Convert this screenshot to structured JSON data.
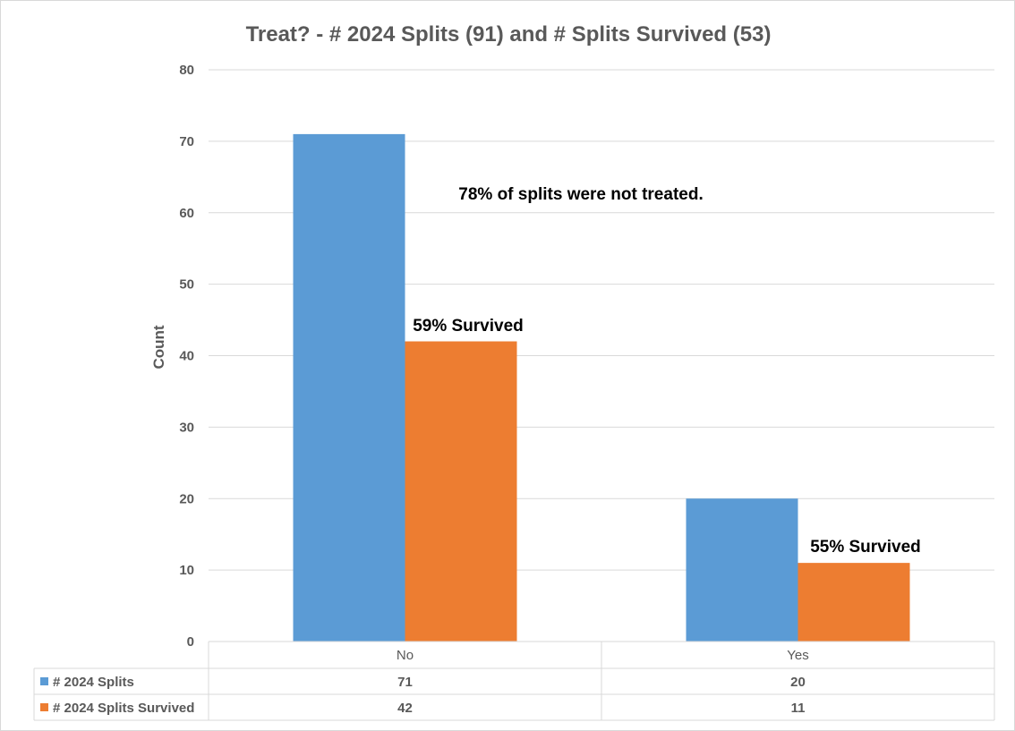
{
  "chart_data": {
    "type": "bar",
    "title": "Treat? - # 2024 Splits (91) and # Splits Survived (53)",
    "ylabel": "Count",
    "xlabel": "",
    "categories": [
      "No",
      "Yes"
    ],
    "ylim": [
      0,
      80
    ],
    "yticks": [
      0,
      10,
      20,
      30,
      40,
      50,
      60,
      70,
      80
    ],
    "grid": true,
    "legend": "data-table",
    "series": [
      {
        "name": "# 2024 Splits",
        "values": [
          71,
          20
        ],
        "color": "#5b9bd5"
      },
      {
        "name": "# 2024 Splits Survived",
        "values": [
          42,
          11
        ],
        "color": "#ed7d31"
      }
    ],
    "annotations": [
      {
        "text": "78% of splits were not treated."
      },
      {
        "text": "59% Survived"
      },
      {
        "text": "55% Survived"
      }
    ]
  }
}
